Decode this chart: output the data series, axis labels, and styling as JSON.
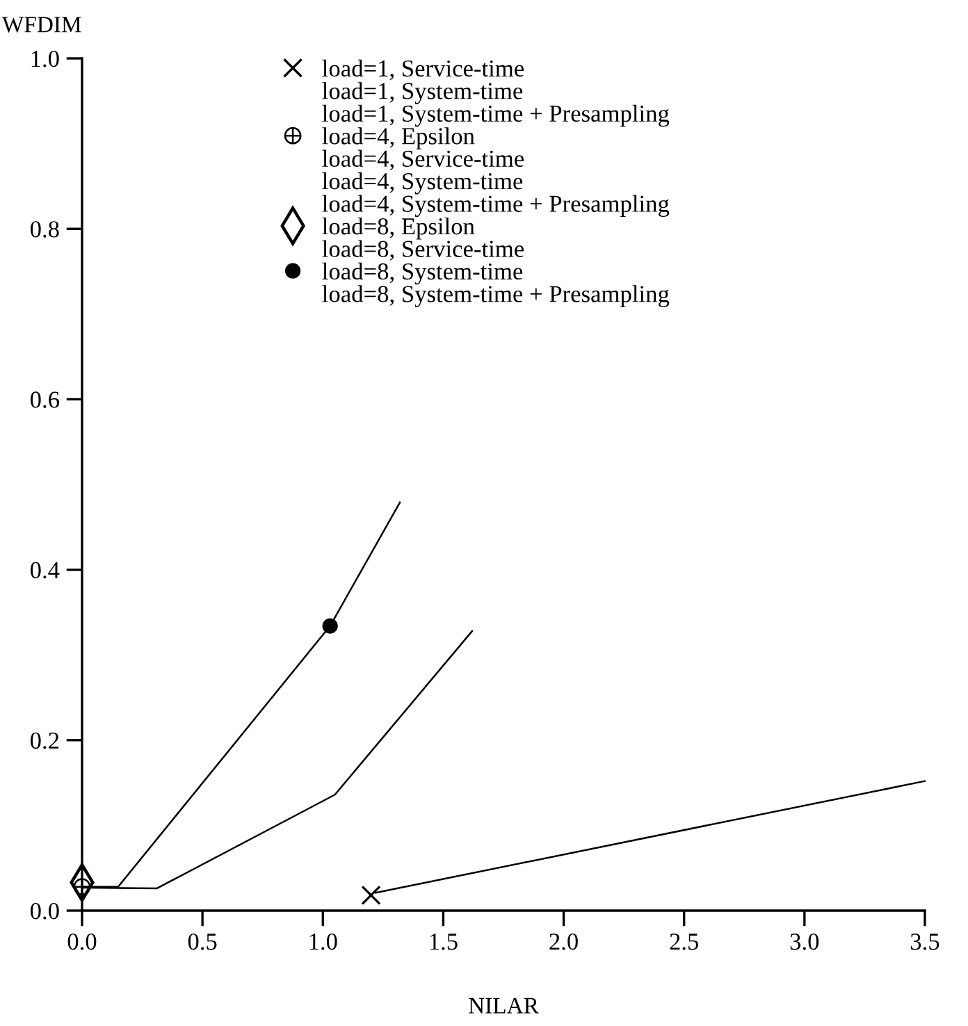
{
  "chart_data": {
    "type": "line",
    "xlabel": "NILAR",
    "ylabel": "WFDIM",
    "xlim": [
      0,
      3.5
    ],
    "ylim": [
      0,
      1.0
    ],
    "xticks": [
      {
        "value": 0,
        "label": "0.0"
      },
      0.5,
      {
        "value": 1,
        "label": "1.0"
      },
      1.5,
      {
        "value": 2,
        "label": "2.0"
      },
      2.5,
      {
        "value": 3,
        "label": "3.0"
      },
      3.5
    ],
    "yticks": [
      {
        "value": 0,
        "label": "0.0"
      },
      0.2,
      0.4,
      0.6,
      0.8,
      {
        "value": 1,
        "label": "1.0"
      }
    ],
    "grid": false,
    "legend": "top",
    "marker": "none",
    "series": [
      {
        "name": "load=1, Service-time",
        "type": "scatter",
        "marker": "cross",
        "color": "#000000",
        "x": [
          1.2
        ],
        "values": [
          0.018
        ]
      },
      {
        "name": "load=1, System-time",
        "type": "line",
        "color": "#000000"
      },
      {
        "name": "load=1, System-time + Presampling",
        "type": "line",
        "color": "#000000"
      },
      {
        "name": "load=4, Epsilon",
        "type": "scatter",
        "marker": "circle",
        "color": "#000000",
        "x": [
          0
        ],
        "values": [
          0.028
        ]
      },
      {
        "name": "load=4, Service-time",
        "type": "line",
        "color": "#000000"
      },
      {
        "name": "load=4, System-time",
        "type": "line",
        "color": "#000000"
      },
      {
        "name": "load=4, System-time + Presampling",
        "type": "line",
        "color": "#000000"
      },
      {
        "name": "load=8, Epsilon",
        "type": "scatter",
        "marker": "diamond",
        "color": "#000000",
        "x": [
          0
        ],
        "values": [
          0.033
        ]
      },
      {
        "name": "load=8, Service-time",
        "type": "line",
        "color": "#000000"
      },
      {
        "name": "load=8, System-time",
        "type": "scatter",
        "marker": "circle",
        "color": "#000000",
        "x": [
          1.03
        ],
        "values": [
          0.334
        ]
      },
      {
        "name": "load=8, System-time + Presampling",
        "type": "line",
        "color": "#000000"
      },
      {
        "type": "line",
        "color": "#000000",
        "x": [
          0,
          0.15,
          1.03,
          1.32
        ],
        "values": [
          0.028,
          0.028,
          0.334,
          0.479
        ]
      },
      {
        "type": "line",
        "color": "#000000",
        "x": [
          0,
          0.31,
          1.05,
          1.62
        ],
        "values": [
          0.027,
          0.026,
          0.136,
          0.328
        ]
      },
      {
        "type": "line",
        "color": "#000000",
        "x": [
          1.22,
          3.5
        ],
        "values": [
          0.021,
          0.152
        ]
      }
    ]
  }
}
